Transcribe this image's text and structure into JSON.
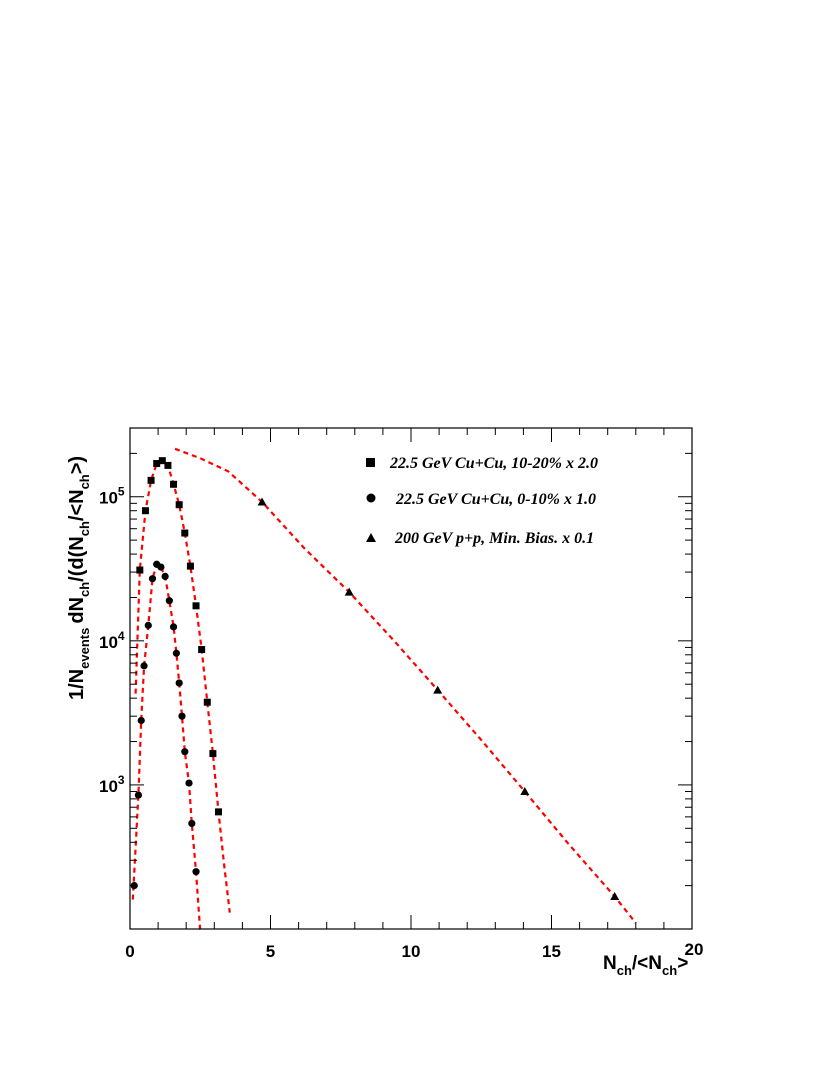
{
  "chart_data": {
    "type": "scatter",
    "title": "",
    "xlabel": {
      "main": "N",
      "sub1": "ch",
      "mid": "/<N",
      "sub2": "ch",
      "end": ">"
    },
    "ylabel": {
      "p1": "1/N",
      "s1": "events",
      "p2": "dN",
      "s2": "ch",
      "p3": "/(d(N",
      "s3": "ch",
      "p4": "/<N",
      "s4": "ch",
      "p5": ">)"
    },
    "xlim": [
      0,
      20
    ],
    "ylim": [
      100,
      300000
    ],
    "yscale": "log",
    "grid": false,
    "legend_position": "top-right",
    "x_ticks": [
      {
        "v": 0,
        "label": "0"
      },
      {
        "v": 5,
        "label": "5"
      },
      {
        "v": 10,
        "label": "10"
      },
      {
        "v": 15,
        "label": "15"
      },
      {
        "v": 20,
        "label": "20"
      }
    ],
    "y_ticks": [
      {
        "v": 1000,
        "base": "10",
        "exp": "3"
      },
      {
        "v": 10000,
        "base": "10",
        "exp": "4"
      },
      {
        "v": 100000,
        "base": "10",
        "exp": "5"
      }
    ],
    "series": [
      {
        "name": "22.5 GeV Cu+Cu, 10-20% x 2.0",
        "marker": "square",
        "color": "#000000",
        "points": [
          [
            0.35,
            31000
          ],
          [
            0.55,
            80000
          ],
          [
            0.75,
            130000
          ],
          [
            0.95,
            170000
          ],
          [
            1.15,
            178000
          ],
          [
            1.35,
            165000
          ],
          [
            1.55,
            122000
          ],
          [
            1.75,
            88000
          ],
          [
            1.95,
            56000
          ],
          [
            2.15,
            33000
          ],
          [
            2.35,
            17500
          ],
          [
            2.55,
            8700
          ],
          [
            2.75,
            3750
          ],
          [
            2.95,
            1650
          ],
          [
            3.15,
            650
          ]
        ]
      },
      {
        "name": "22.5 GeV Cu+Cu, 0-10% x 1.0",
        "marker": "circle",
        "color": "#000000",
        "points": [
          [
            0.15,
            200
          ],
          [
            0.3,
            850
          ],
          [
            0.4,
            2800
          ],
          [
            0.5,
            6700
          ],
          [
            0.65,
            12800
          ],
          [
            0.8,
            27000
          ],
          [
            0.95,
            34000
          ],
          [
            1.1,
            32500
          ],
          [
            1.25,
            28000
          ],
          [
            1.4,
            19000
          ],
          [
            1.55,
            12500
          ],
          [
            1.65,
            8200
          ],
          [
            1.75,
            5100
          ],
          [
            1.85,
            3000
          ],
          [
            1.95,
            1700
          ],
          [
            2.1,
            1030
          ],
          [
            2.2,
            540
          ],
          [
            2.35,
            250
          ]
        ]
      },
      {
        "name": "200 GeV p+p, Min. Bias. x 0.1",
        "marker": "triangle",
        "color": "#000000",
        "points": [
          [
            4.7,
            92000
          ],
          [
            7.8,
            21800
          ],
          [
            10.95,
            4550
          ],
          [
            14.05,
            900
          ],
          [
            17.25,
            168
          ]
        ]
      }
    ],
    "fits": [
      {
        "color": "#ff0000",
        "points": [
          [
            0.2,
            4300
          ],
          [
            0.35,
            31000
          ],
          [
            0.55,
            80000
          ],
          [
            0.75,
            130000
          ],
          [
            0.95,
            170000
          ],
          [
            1.15,
            178000
          ],
          [
            1.35,
            165000
          ],
          [
            1.55,
            122000
          ],
          [
            1.75,
            88000
          ],
          [
            1.95,
            56000
          ],
          [
            2.15,
            33000
          ],
          [
            2.35,
            17500
          ],
          [
            2.55,
            8700
          ],
          [
            2.75,
            3750
          ],
          [
            2.95,
            1650
          ],
          [
            3.15,
            650
          ],
          [
            3.35,
            280
          ],
          [
            3.55,
            130
          ]
        ]
      },
      {
        "color": "#ff0000",
        "points": [
          [
            0.1,
            160
          ],
          [
            0.3,
            850
          ],
          [
            0.4,
            2800
          ],
          [
            0.5,
            6700
          ],
          [
            0.65,
            12800
          ],
          [
            0.8,
            27000
          ],
          [
            0.95,
            34000
          ],
          [
            1.1,
            32500
          ],
          [
            1.25,
            28000
          ],
          [
            1.4,
            19000
          ],
          [
            1.55,
            12500
          ],
          [
            1.65,
            8200
          ],
          [
            1.75,
            5100
          ],
          [
            1.85,
            3000
          ],
          [
            1.95,
            1700
          ],
          [
            2.1,
            1030
          ],
          [
            2.2,
            540
          ],
          [
            2.35,
            250
          ],
          [
            2.5,
            95
          ]
        ]
      },
      {
        "color": "#ff0000",
        "points": [
          [
            1.6,
            215000
          ],
          [
            2.5,
            185000
          ],
          [
            3.5,
            150000
          ],
          [
            4.7,
            92000
          ],
          [
            6.2,
            44000
          ],
          [
            7.8,
            21800
          ],
          [
            9.4,
            10000
          ],
          [
            10.95,
            4550
          ],
          [
            12.5,
            2050
          ],
          [
            14.05,
            900
          ],
          [
            15.6,
            390
          ],
          [
            17.25,
            168
          ],
          [
            18.0,
            110
          ]
        ]
      }
    ]
  }
}
